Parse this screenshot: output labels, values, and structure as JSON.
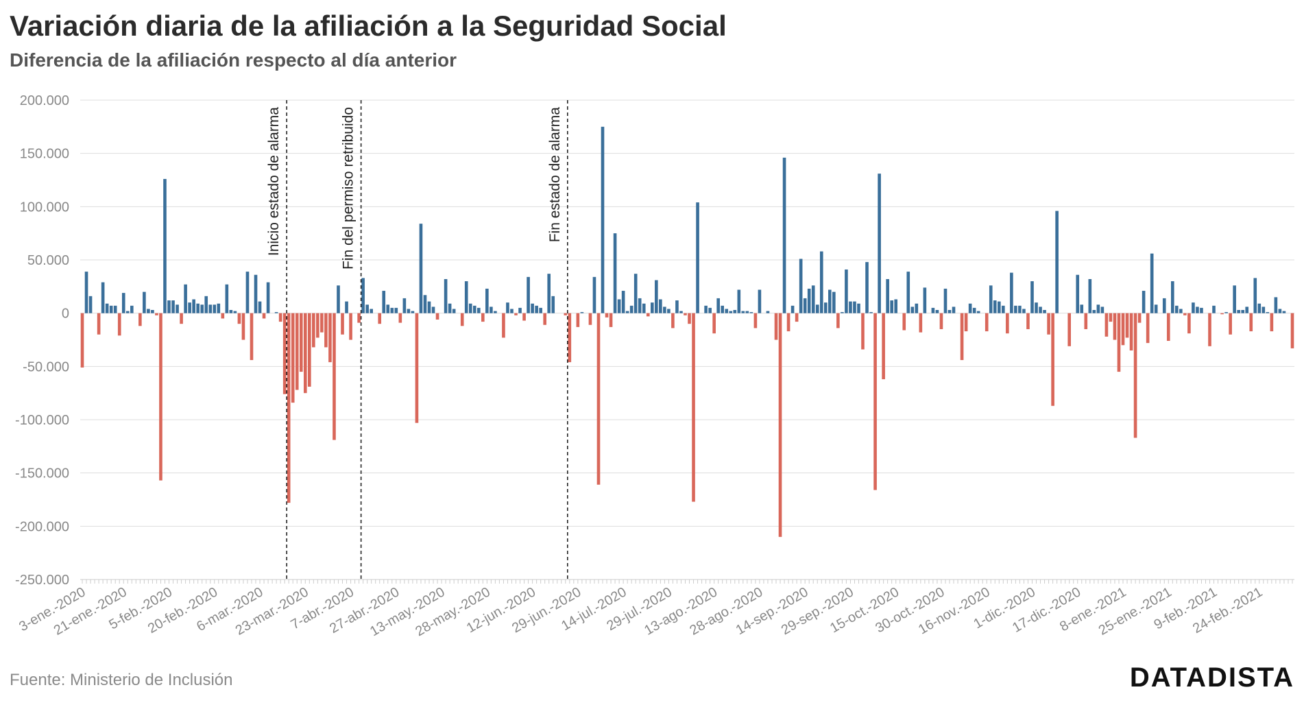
{
  "title": "Variación diaria de la afiliación a la Seguridad Social",
  "subtitle": "Diferencia de la afiliación respecto al día anterior",
  "source": "Fuente: Ministerio de Inclusión",
  "logo": "DATADISTA",
  "colors": {
    "positive": "#3a6f9a",
    "negative": "#d9675a",
    "axis_text": "#888888",
    "gridline": "#dddddd"
  },
  "chart_data": {
    "type": "bar",
    "ylim": [
      -250000,
      200000
    ],
    "y_ticks": [
      200000,
      150000,
      100000,
      50000,
      0,
      -50000,
      -100000,
      -150000,
      -200000,
      -250000
    ],
    "y_tick_labels": [
      "200.000",
      "150.000",
      "100.000",
      "50.000",
      "0",
      "-50.000",
      "-100.000",
      "-150.000",
      "-200.000",
      "-250.000"
    ],
    "x_tick_labels": [
      {
        "label": "3-ene.-2020",
        "index": 0
      },
      {
        "label": "21-ene.-2020",
        "index": 10
      },
      {
        "label": "5-feb.-2020",
        "index": 21
      },
      {
        "label": "20-feb.-2020",
        "index": 32
      },
      {
        "label": "6-mar.-2020",
        "index": 43
      },
      {
        "label": "23-mar.-2020",
        "index": 54
      },
      {
        "label": "7-abr.-2020",
        "index": 65
      },
      {
        "label": "27-abr.-2020",
        "index": 76
      },
      {
        "label": "13-may.-2020",
        "index": 87
      },
      {
        "label": "28-may.-2020",
        "index": 98
      },
      {
        "label": "12-jun.-2020",
        "index": 109
      },
      {
        "label": "29-jun.-2020",
        "index": 120
      },
      {
        "label": "14-jul.-2020",
        "index": 131
      },
      {
        "label": "29-jul.-2020",
        "index": 142
      },
      {
        "label": "13-ago.-2020",
        "index": 153
      },
      {
        "label": "28-ago.-2020",
        "index": 164
      },
      {
        "label": "14-sep.-2020",
        "index": 175
      },
      {
        "label": "29-sep.-2020",
        "index": 186
      },
      {
        "label": "15-oct.-2020",
        "index": 197
      },
      {
        "label": "30-oct.-2020",
        "index": 208
      },
      {
        "label": "16-nov.-2020",
        "index": 219
      },
      {
        "label": "1-dic.-2020",
        "index": 230
      },
      {
        "label": "17-dic.-2020",
        "index": 241
      },
      {
        "label": "8-ene.-2021",
        "index": 252
      },
      {
        "label": "25-ene.-2021",
        "index": 263
      },
      {
        "label": "9-feb.-2021",
        "index": 274
      },
      {
        "label": "24-feb.-2021",
        "index": 285
      }
    ],
    "annotations": [
      {
        "label": "Inicio estado de alarma",
        "index": 49.5
      },
      {
        "label": "Fin del permiso retribuido",
        "index": 67.5
      },
      {
        "label": "Fin estado de alarma",
        "index": 117.5
      }
    ],
    "values": [
      -51000,
      39000,
      16000,
      0,
      -20000,
      29000,
      9000,
      7000,
      7000,
      -21000,
      19000,
      2000,
      7000,
      0,
      -12000,
      20000,
      4000,
      3000,
      -2000,
      -157000,
      126000,
      12000,
      12000,
      8000,
      -10000,
      27000,
      10000,
      13000,
      9000,
      8000,
      16000,
      8000,
      8000,
      9000,
      -5000,
      27000,
      3000,
      2000,
      -10000,
      -25000,
      39000,
      -44000,
      36000,
      11000,
      -5000,
      29000,
      0,
      1000,
      -8000,
      -76000,
      -178000,
      -84000,
      -72000,
      -55000,
      -75000,
      -69000,
      -32000,
      -23000,
      -18000,
      -32000,
      -46000,
      -119000,
      26000,
      -20000,
      11000,
      -25000,
      0,
      -9000,
      33000,
      8000,
      4000,
      0,
      -10000,
      21000,
      8000,
      5000,
      5000,
      -9000,
      14000,
      4000,
      2000,
      -103000,
      84000,
      17000,
      11000,
      6000,
      -6000,
      0,
      32000,
      9000,
      4000,
      0,
      -12000,
      30000,
      9000,
      7000,
      5000,
      -8000,
      23000,
      6000,
      2000,
      0,
      -23000,
      10000,
      4000,
      -2000,
      5000,
      -7000,
      34000,
      9000,
      7000,
      5000,
      -11000,
      37000,
      16000,
      0,
      0,
      -2000,
      -46000,
      0,
      -13000,
      1000,
      0,
      -11000,
      34000,
      -161000,
      175000,
      -4000,
      -13000,
      75000,
      13000,
      21000,
      2000,
      7000,
      37000,
      14000,
      9000,
      -3000,
      10000,
      31000,
      13000,
      6000,
      4000,
      -14000,
      12000,
      2000,
      -2000,
      -10000,
      -177000,
      104000,
      0,
      7000,
      5000,
      -19000,
      14000,
      7000,
      4000,
      2000,
      3000,
      22000,
      2000,
      2000,
      1000,
      -14000,
      22000,
      0,
      2000,
      0,
      -25000,
      -210000,
      146000,
      -17000,
      7000,
      -8000,
      51000,
      14000,
      23000,
      26000,
      8000,
      58000,
      10000,
      22000,
      20000,
      -14000,
      1000,
      41000,
      11000,
      11000,
      9000,
      -34000,
      48000,
      1000,
      -166000,
      131000,
      -62000,
      32000,
      12000,
      13000,
      0,
      -16000,
      39000,
      6000,
      9000,
      -18000,
      24000,
      0,
      5000,
      3000,
      -15000,
      23000,
      3000,
      6000,
      0,
      -44000,
      -17000,
      9000,
      5000,
      2000,
      0,
      -17000,
      26000,
      12000,
      11000,
      7000,
      -19000,
      38000,
      7000,
      7000,
      4000,
      -15000,
      30000,
      10000,
      6000,
      3000,
      -20000,
      -87000,
      96000,
      0,
      0,
      -31000,
      0,
      36000,
      8000,
      -15000,
      32000,
      3000,
      8000,
      6000,
      -22000,
      -8000,
      -25000,
      -55000,
      -30000,
      -23000,
      -35000,
      -117000,
      -9000,
      21000,
      -28000,
      56000,
      8000,
      0,
      14000,
      -26000,
      30000,
      7000,
      4000,
      -2000,
      -19000,
      10000,
      6000,
      5000,
      0,
      -31000,
      7000,
      0,
      -1000,
      1000,
      -20000,
      26000,
      3000,
      3000,
      6000,
      -17000,
      33000,
      9000,
      6000,
      1000,
      -17000,
      15000,
      4000,
      2000,
      0,
      -33000
    ]
  }
}
